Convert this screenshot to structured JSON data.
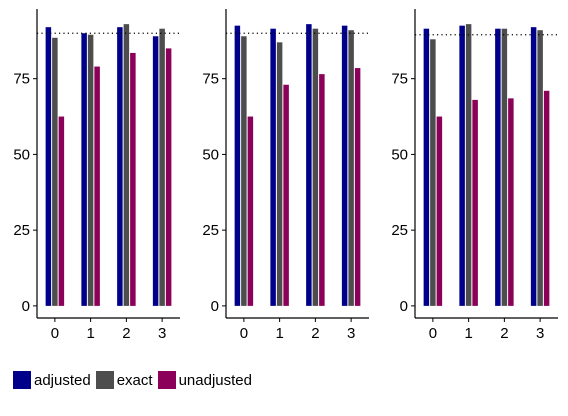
{
  "chart_data": [
    {
      "type": "bar",
      "categories": [
        "0",
        "1",
        "2",
        "3"
      ],
      "yticks": [
        0,
        25,
        50,
        75
      ],
      "ylim": [
        -4,
        98
      ],
      "reference_line": 90,
      "series": [
        {
          "name": "adjusted",
          "values": [
            92,
            90,
            92,
            89
          ]
        },
        {
          "name": "exact",
          "values": [
            88.5,
            89.5,
            93,
            91.5
          ]
        },
        {
          "name": "unadjusted",
          "values": [
            62.5,
            79,
            83.5,
            85
          ]
        }
      ]
    },
    {
      "type": "bar",
      "categories": [
        "0",
        "1",
        "2",
        "3"
      ],
      "yticks": [
        0,
        25,
        50,
        75
      ],
      "ylim": [
        -4,
        98
      ],
      "reference_line": 90,
      "series": [
        {
          "name": "adjusted",
          "values": [
            92.5,
            91.5,
            93,
            92.5
          ]
        },
        {
          "name": "exact",
          "values": [
            89,
            87,
            91.5,
            91
          ]
        },
        {
          "name": "unadjusted",
          "values": [
            62.5,
            73,
            76.5,
            78.5
          ]
        }
      ]
    },
    {
      "type": "bar",
      "categories": [
        "0",
        "1",
        "2",
        "3"
      ],
      "yticks": [
        0,
        25,
        50,
        75
      ],
      "ylim": [
        -4,
        98
      ],
      "reference_line": 89.5,
      "series": [
        {
          "name": "adjusted",
          "values": [
            91.5,
            92.5,
            91.5,
            92
          ]
        },
        {
          "name": "exact",
          "values": [
            88,
            93,
            91.5,
            91
          ]
        },
        {
          "name": "unadjusted",
          "values": [
            62.5,
            68,
            68.5,
            71
          ]
        }
      ]
    }
  ],
  "legend": [
    {
      "label": "adjusted",
      "color": "#00008B"
    },
    {
      "label": "exact",
      "color": "#4D4D4D"
    },
    {
      "label": "unadjusted",
      "color": "#8B0058"
    }
  ]
}
